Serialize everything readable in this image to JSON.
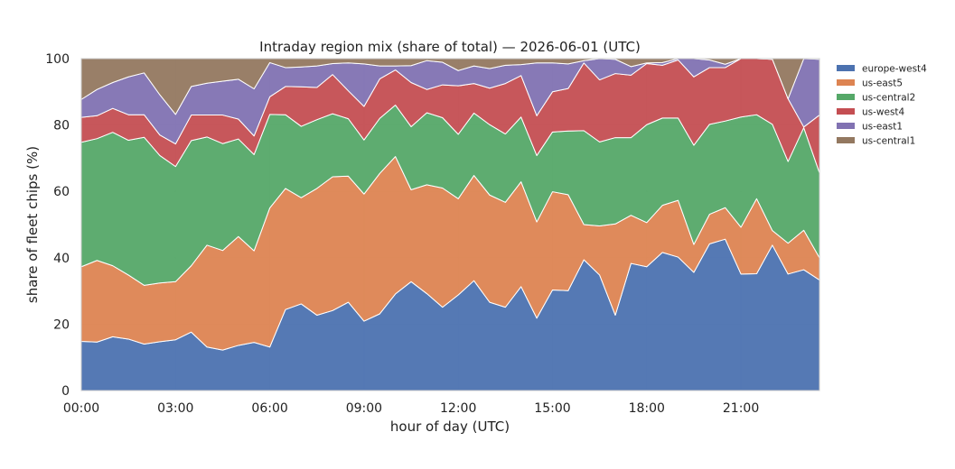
{
  "chart_data": {
    "type": "area",
    "title": "Intraday region mix (share of total) — 2026-06-01 (UTC)",
    "xlabel": "hour of day (UTC)",
    "ylabel": "share of fleet chips (%)",
    "xlim": [
      "00:00",
      "23:30"
    ],
    "ylim": [
      0,
      100
    ],
    "x_ticks": [
      "00:00",
      "03:00",
      "06:00",
      "09:00",
      "12:00",
      "15:00",
      "18:00",
      "21:00"
    ],
    "y_ticks": [
      "0",
      "20",
      "40",
      "60",
      "80",
      "100"
    ],
    "grid": true,
    "legend_position": "right",
    "x": [
      "00:00",
      "00:30",
      "01:00",
      "01:30",
      "02:00",
      "02:30",
      "03:00",
      "03:30",
      "04:00",
      "04:30",
      "05:00",
      "05:30",
      "06:00",
      "06:30",
      "07:00",
      "07:30",
      "08:00",
      "08:30",
      "09:00",
      "09:30",
      "10:00",
      "10:30",
      "11:00",
      "11:30",
      "12:00",
      "12:30",
      "13:00",
      "13:30",
      "14:00",
      "14:30",
      "15:00",
      "15:30",
      "16:00",
      "16:30",
      "17:00",
      "17:30",
      "18:00",
      "18:30",
      "19:00",
      "19:30",
      "20:00",
      "20:30",
      "21:00",
      "21:30",
      "22:00",
      "22:30",
      "23:00",
      "23:30"
    ],
    "series": [
      {
        "name": "europe-west4",
        "color": "#4c72b0",
        "values": [
          14.8,
          14.6,
          16.2,
          15.5,
          14.0,
          14.7,
          15.3,
          17.6,
          13.1,
          12.2,
          13.6,
          14.5,
          13.1,
          24.4,
          26.1,
          22.7,
          24.1,
          26.6,
          20.9,
          23.1,
          29.1,
          32.8,
          29.2,
          25.1,
          28.8,
          33.1,
          26.6,
          25.1,
          31.3,
          21.8,
          30.3,
          30.1,
          39.4,
          34.8,
          22.7,
          38.3,
          37.3,
          41.6,
          40.2,
          35.6,
          44.2,
          45.6,
          35.1,
          35.2,
          43.8,
          35.1,
          36.4,
          33.3
        ]
      },
      {
        "name": "us-east5",
        "color": "#dd8452",
        "values": [
          22.5,
          24.6,
          21.4,
          19.3,
          17.7,
          17.7,
          17.5,
          20.0,
          30.7,
          30.0,
          32.8,
          27.6,
          41.9,
          36.5,
          32.0,
          38.2,
          40.3,
          38.0,
          38.3,
          42.3,
          41.4,
          27.7,
          32.8,
          35.9,
          29.0,
          31.7,
          32.3,
          31.6,
          31.6,
          29.0,
          29.6,
          28.9,
          10.6,
          14.8,
          27.5,
          14.5,
          13.3,
          14.2,
          17.1,
          8.4,
          8.9,
          9.5,
          14.1,
          22.6,
          4.4,
          9.3,
          11.9,
          6.7
        ]
      },
      {
        "name": "us-central2",
        "color": "#55a868",
        "values": [
          37.5,
          36.7,
          40.2,
          40.6,
          44.6,
          38.4,
          34.7,
          37.7,
          32.6,
          32.2,
          29.4,
          29.0,
          28.2,
          22.2,
          21.5,
          20.7,
          19.0,
          17.3,
          16.3,
          16.6,
          15.5,
          19.0,
          21.7,
          21.2,
          19.4,
          18.8,
          21.2,
          20.6,
          19.5,
          20.0,
          18.0,
          19.2,
          28.3,
          25.3,
          26.0,
          23.4,
          29.5,
          26.3,
          24.8,
          29.9,
          27.1,
          26.1,
          33.2,
          25.3,
          32.0,
          24.6,
          30.9,
          25.6
        ]
      },
      {
        "name": "us-west4",
        "color": "#c44e52",
        "values": [
          7.5,
          6.9,
          7.2,
          7.7,
          6.8,
          6.2,
          6.8,
          7.7,
          6.6,
          8.6,
          6.0,
          5.6,
          5.3,
          8.5,
          11.9,
          9.7,
          11.8,
          8.4,
          10.1,
          11.9,
          10.6,
          13.3,
          7.0,
          9.9,
          14.6,
          8.9,
          11.0,
          15.2,
          12.5,
          12.0,
          12.1,
          12.8,
          20.4,
          18.7,
          19.3,
          18.8,
          18.4,
          15.9,
          17.5,
          20.6,
          17.1,
          16.1,
          17.6,
          16.9,
          19.6,
          18.9,
          0.2,
          17.4
        ]
      },
      {
        "name": "us-east1",
        "color": "#8172b2",
        "values": [
          5.4,
          7.9,
          7.8,
          11.4,
          12.6,
          12.1,
          8.9,
          8.6,
          9.6,
          10.2,
          12.0,
          14.2,
          10.3,
          5.7,
          6.0,
          6.5,
          3.3,
          8.4,
          12.8,
          3.9,
          1.2,
          5.1,
          8.7,
          6.8,
          4.6,
          5.3,
          5.9,
          5.5,
          3.3,
          15.9,
          8.7,
          7.4,
          0.7,
          6.8,
          4.3,
          2.6,
          0.2,
          0.8,
          0.4,
          5.5,
          2.3,
          1.0,
          0.0,
          0.0,
          0.0,
          0.0,
          20.6,
          16.8
        ]
      },
      {
        "name": "us-central1",
        "color": "#937860",
        "values": [
          12.3,
          9.3,
          7.2,
          5.5,
          4.3,
          10.9,
          16.8,
          8.4,
          7.4,
          6.8,
          6.2,
          9.1,
          1.2,
          2.7,
          2.5,
          2.2,
          1.5,
          1.3,
          1.6,
          2.2,
          2.2,
          2.1,
          0.6,
          1.1,
          3.6,
          2.2,
          3.0,
          2.0,
          1.8,
          1.3,
          1.3,
          1.6,
          0.6,
          0.6,
          0.2,
          2.4,
          1.3,
          1.2,
          0.0,
          0.0,
          0.4,
          1.7,
          0.0,
          0.0,
          0.2,
          12.1,
          0.0,
          0.2
        ]
      }
    ]
  }
}
